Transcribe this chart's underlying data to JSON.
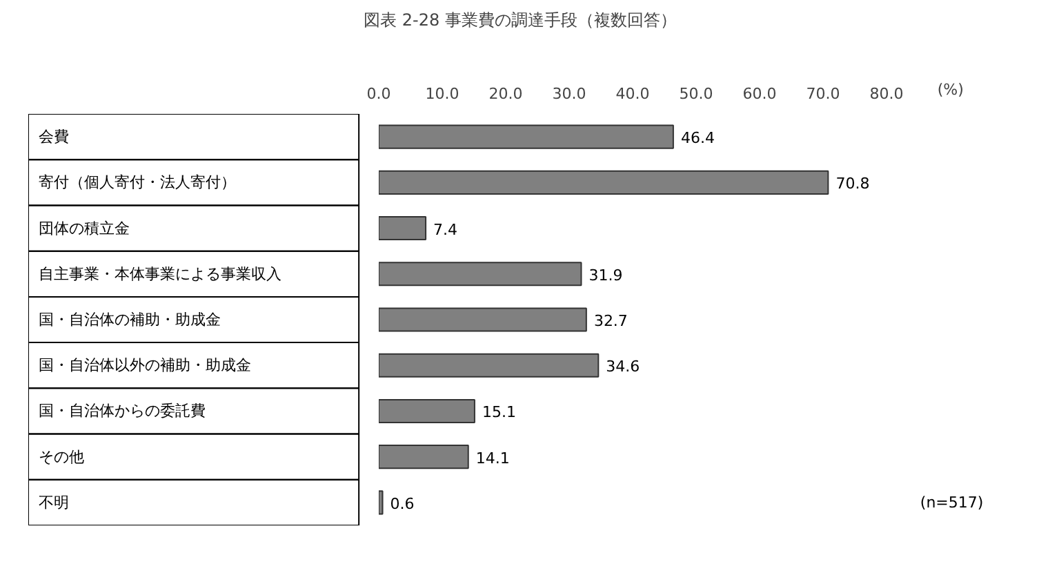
{
  "chart_data": {
    "type": "bar",
    "orientation": "horizontal",
    "title": "図表 2-28 事業費の調達手段（複数回答）",
    "xlabel": "(%)",
    "categories": [
      "会費",
      "寄付（個人寄付・法人寄付）",
      "団体の積立金",
      "自主事業・本体事業による事業収入",
      "国・自治体の補助・助成金",
      "国・自治体以外の補助・助成金",
      "国・自治体からの委託費",
      "その他",
      "不明"
    ],
    "values": [
      46.4,
      70.8,
      7.4,
      31.9,
      32.7,
      34.6,
      15.1,
      14.1,
      0.6
    ],
    "color": "#808080",
    "xlim": [
      0,
      80
    ],
    "xticks": [
      {
        "value": 0,
        "label": "0.0"
      },
      {
        "value": 10,
        "label": "10.0"
      },
      {
        "value": 20,
        "label": "20.0"
      },
      {
        "value": 30,
        "label": "30.0"
      },
      {
        "value": 40,
        "label": "40.0"
      },
      {
        "value": 50,
        "label": "50.0"
      },
      {
        "value": 60,
        "label": "60.0"
      },
      {
        "value": 70,
        "label": "70.0"
      },
      {
        "value": 80,
        "label": "80.0"
      }
    ],
    "grid": false,
    "data_labels": true,
    "annotations": [
      "(n=517)"
    ]
  }
}
